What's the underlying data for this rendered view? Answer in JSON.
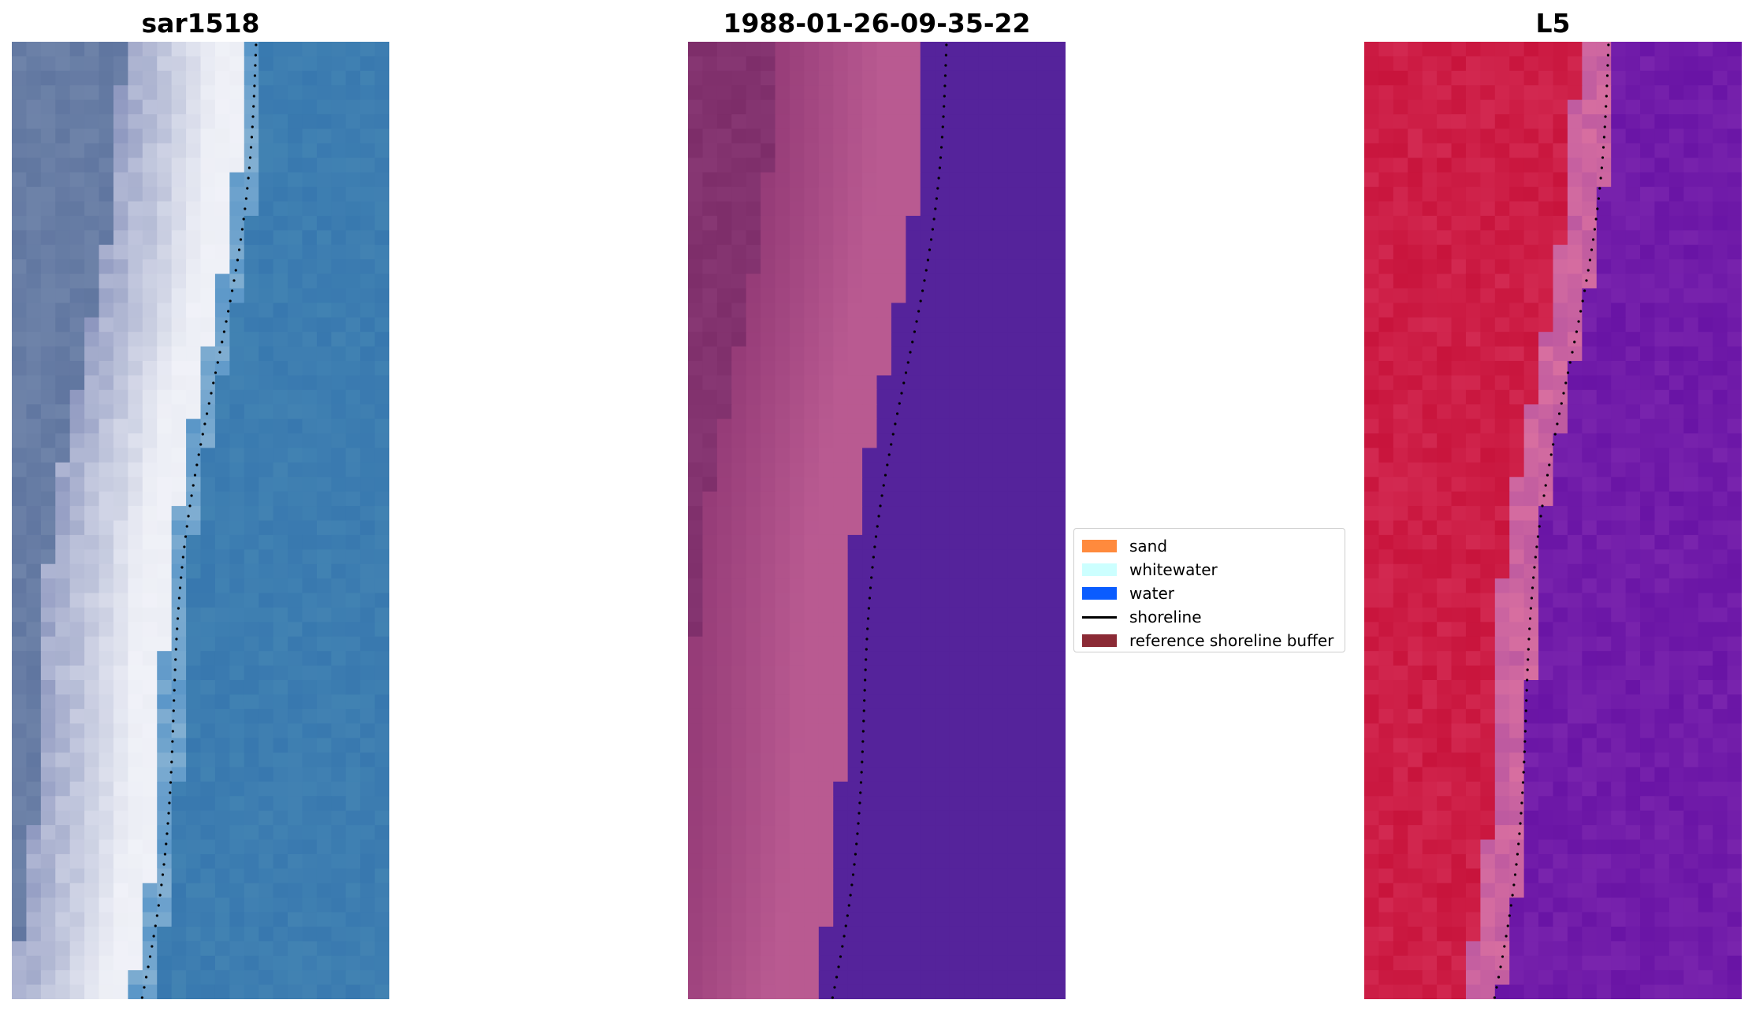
{
  "panels": [
    {
      "title": "sar1518",
      "style": "rgb"
    },
    {
      "title": "1988-01-26-09-35-22",
      "style": "classified"
    },
    {
      "title": "L5",
      "style": "index"
    }
  ],
  "legend": {
    "items": [
      {
        "label": "sand",
        "color": "#ff8a3d",
        "kind": "patch"
      },
      {
        "label": "whitewater",
        "color": "#ccffff",
        "kind": "patch"
      },
      {
        "label": "water",
        "color": "#0a5cff",
        "kind": "patch"
      },
      {
        "label": "shoreline",
        "color": "#000000",
        "kind": "line"
      },
      {
        "label": "reference shoreline buffer",
        "color": "#8b2a35",
        "kind": "patch"
      }
    ]
  }
}
